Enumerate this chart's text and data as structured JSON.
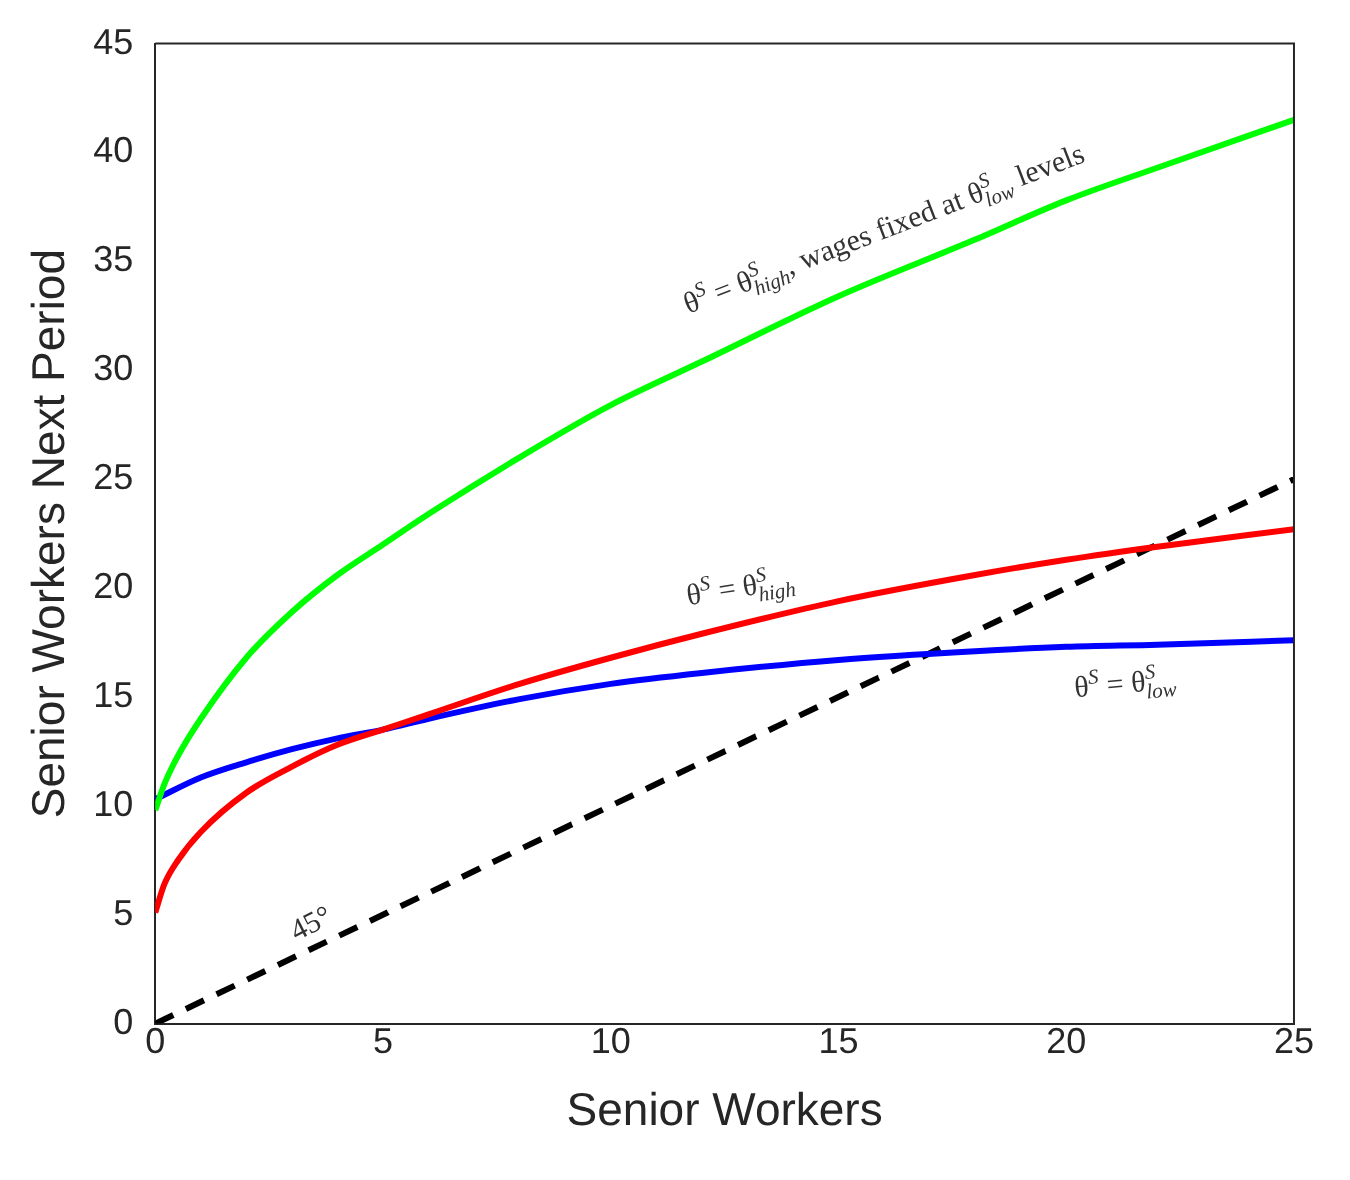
{
  "chart_data": {
    "type": "line",
    "xlabel": "Senior Workers",
    "ylabel": "Senior Workers Next Period",
    "xlim": [
      0,
      25
    ],
    "xticks": [
      0,
      5,
      10,
      15,
      20,
      25
    ],
    "ylim": [
      0,
      45
    ],
    "yticks": [
      0,
      5,
      10,
      15,
      20,
      25,
      30,
      35,
      40,
      45
    ],
    "grid": false,
    "legend": false,
    "marker": "none",
    "series": [
      {
        "color": "#00ff00",
        "x": [
          0,
          0.2,
          0.5,
          1,
          2,
          3,
          4,
          5,
          6,
          8,
          10,
          12,
          15,
          18,
          20,
          22,
          25
        ],
        "values": [
          9.8,
          11,
          12.3,
          14,
          16.8,
          18.9,
          20.6,
          22,
          23.4,
          26,
          28.4,
          30.4,
          33.4,
          36,
          37.8,
          39.3,
          41.5
        ]
      },
      {
        "color": "#ff0000",
        "x": [
          0,
          0.2,
          0.5,
          1,
          2,
          3,
          4,
          5,
          6,
          8,
          10,
          12,
          15,
          18,
          20,
          22,
          25
        ],
        "values": [
          5.1,
          6.4,
          7.5,
          8.8,
          10.6,
          11.8,
          12.8,
          13.5,
          14.2,
          15.6,
          16.8,
          17.9,
          19.4,
          20.6,
          21.3,
          21.9,
          22.7
        ]
      },
      {
        "color": "#0000ff",
        "x": [
          0,
          1,
          2,
          3,
          4,
          5,
          6,
          8,
          10,
          12,
          15,
          18,
          20,
          22,
          25
        ],
        "values": [
          10.3,
          11.3,
          12,
          12.6,
          13.1,
          13.5,
          14,
          14.9,
          15.6,
          16.1,
          16.7,
          17.1,
          17.3,
          17.4,
          17.6
        ]
      },
      {
        "color": "#000000",
        "line_style": "dashed",
        "x": [
          0,
          25
        ],
        "values": [
          0,
          25
        ]
      }
    ],
    "annotations": [
      "θ$^{S}$ = θ$^{S}$$_{high}$, wages fixed at θ$^{S}$$_{low}$ levels",
      "θ$^{S}$ = θ$^{S}$$_{high}$",
      "θ$^{S}$ = θ$^{S}$$_{low}$",
      "45°"
    ]
  }
}
